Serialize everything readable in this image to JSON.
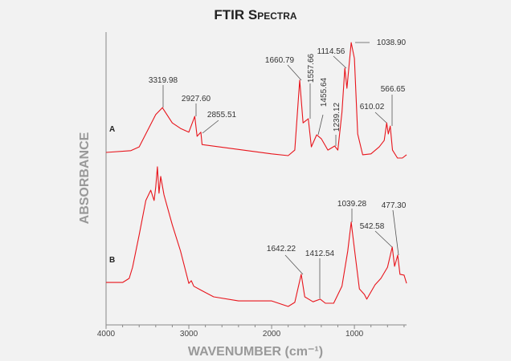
{
  "chart_data": {
    "type": "line",
    "title": "FTIR Spectra",
    "xlabel": "WAVENUMBER (cm⁻¹)",
    "ylabel": "ABSORBANCE",
    "xlim": [
      4000,
      370
    ],
    "ylim": [
      0,
      100
    ],
    "y_units": "arbitrary (offset spectra)",
    "xticks": [
      4000,
      3000,
      2000,
      1000
    ],
    "xtick_labels": [
      "4000",
      "3000",
      "2000",
      "1000"
    ],
    "grid": false,
    "line_color": "#e8141b",
    "series": [
      {
        "name": "A",
        "points": [
          [
            4000,
            58.9
          ],
          [
            3700,
            59.5
          ],
          [
            3600,
            60.8
          ],
          [
            3500,
            66.3
          ],
          [
            3400,
            71.8
          ],
          [
            3320,
            74.2
          ],
          [
            3200,
            69
          ],
          [
            3100,
            67.1
          ],
          [
            3000,
            65.8
          ],
          [
            2928,
            71.2
          ],
          [
            2900,
            64.4
          ],
          [
            2855,
            65.8
          ],
          [
            2840,
            61.6
          ],
          [
            2000,
            58.4
          ],
          [
            1800,
            57.8
          ],
          [
            1720,
            59.7
          ],
          [
            1661,
            83.6
          ],
          [
            1620,
            69
          ],
          [
            1557,
            70.4
          ],
          [
            1520,
            60.8
          ],
          [
            1456,
            64.9
          ],
          [
            1400,
            63.6
          ],
          [
            1320,
            59.7
          ],
          [
            1239,
            61.1
          ],
          [
            1200,
            59.7
          ],
          [
            1150,
            72.6
          ],
          [
            1115,
            87.7
          ],
          [
            1090,
            80.8
          ],
          [
            1039,
            96.4
          ],
          [
            1000,
            91
          ],
          [
            960,
            65.2
          ],
          [
            900,
            58.1
          ],
          [
            800,
            58.4
          ],
          [
            700,
            60.8
          ],
          [
            640,
            63
          ],
          [
            610,
            69
          ],
          [
            590,
            65.2
          ],
          [
            567,
            67.9
          ],
          [
            540,
            59.7
          ],
          [
            480,
            57
          ],
          [
            420,
            57
          ],
          [
            370,
            58.1
          ]
        ],
        "peaks": [
          "3319.98",
          "2927.60",
          "2855.51",
          "1660.79",
          "1557.66",
          "1455.64",
          "1239.12",
          "1114.56",
          "1038.90",
          "610.02",
          "566.65"
        ]
      },
      {
        "name": "B",
        "points": [
          [
            4000,
            14.5
          ],
          [
            3800,
            14.5
          ],
          [
            3720,
            15.9
          ],
          [
            3680,
            19.7
          ],
          [
            3600,
            30.7
          ],
          [
            3520,
            42.5
          ],
          [
            3460,
            46
          ],
          [
            3420,
            42.5
          ],
          [
            3400,
            47
          ],
          [
            3380,
            54
          ],
          [
            3360,
            45
          ],
          [
            3340,
            50.7
          ],
          [
            3300,
            44.4
          ],
          [
            3200,
            34.2
          ],
          [
            3100,
            25.2
          ],
          [
            3000,
            14.2
          ],
          [
            2970,
            15.1
          ],
          [
            2940,
            13.2
          ],
          [
            2850,
            11.8
          ],
          [
            2700,
            9.6
          ],
          [
            2400,
            8.2
          ],
          [
            2000,
            8.2
          ],
          [
            1800,
            6.3
          ],
          [
            1720,
            7.7
          ],
          [
            1642,
            17.3
          ],
          [
            1600,
            9.6
          ],
          [
            1500,
            7.9
          ],
          [
            1412,
            8.8
          ],
          [
            1350,
            7.4
          ],
          [
            1250,
            7.4
          ],
          [
            1150,
            13.2
          ],
          [
            1080,
            25.2
          ],
          [
            1039,
            35.1
          ],
          [
            1000,
            26
          ],
          [
            940,
            12.3
          ],
          [
            880,
            10.4
          ],
          [
            850,
            8.8
          ],
          [
            750,
            13.7
          ],
          [
            680,
            15.9
          ],
          [
            600,
            19.7
          ],
          [
            543,
            26.6
          ],
          [
            515,
            20
          ],
          [
            477,
            23.8
          ],
          [
            450,
            17.3
          ],
          [
            400,
            17
          ],
          [
            370,
            14.2
          ]
        ],
        "peaks": [
          "1642.22",
          "1412.54",
          "1039.28",
          "542.58",
          "477.30"
        ]
      }
    ]
  }
}
